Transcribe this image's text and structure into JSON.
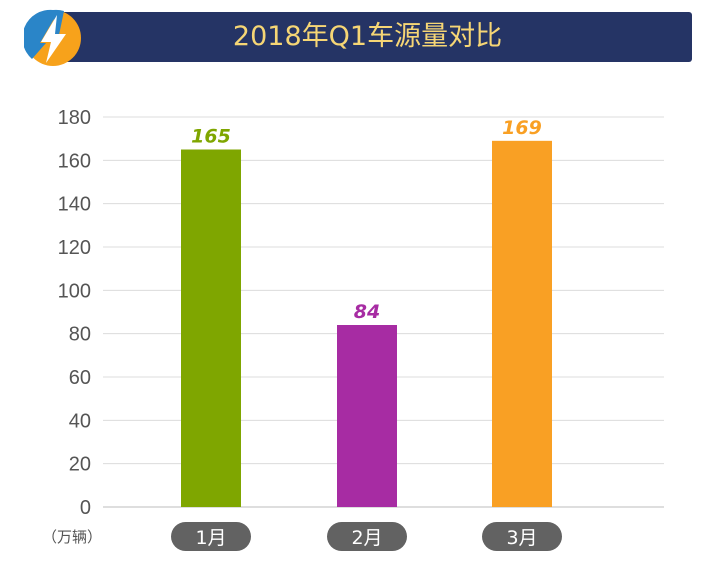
{
  "header": {
    "title": "2018年Q1车源量对比"
  },
  "colors": {
    "header_bg": "#253465",
    "title_text": "#f6d675",
    "logo_orange": "#f7a21b",
    "logo_blue": "#2a85c8"
  },
  "logo": {
    "icon": "lightning-bolt-icon"
  },
  "chart_data": {
    "type": "bar",
    "title": "2018年Q1车源量对比",
    "ylabel": "（万辆）",
    "ylim": [
      0,
      180
    ],
    "yticks": [
      "0",
      "20",
      "40",
      "60",
      "80",
      "100",
      "120",
      "140",
      "160",
      "180"
    ],
    "grid": true,
    "categories": [
      "1月",
      "2月",
      "3月"
    ],
    "values": [
      165,
      84,
      169
    ],
    "bar_colors": [
      "#7fa600",
      "#a72ca3",
      "#f9a024"
    ],
    "label_colors": [
      "#7fa600",
      "#a72ca3",
      "#f9a024"
    ],
    "category_pill_color": "#626262"
  }
}
